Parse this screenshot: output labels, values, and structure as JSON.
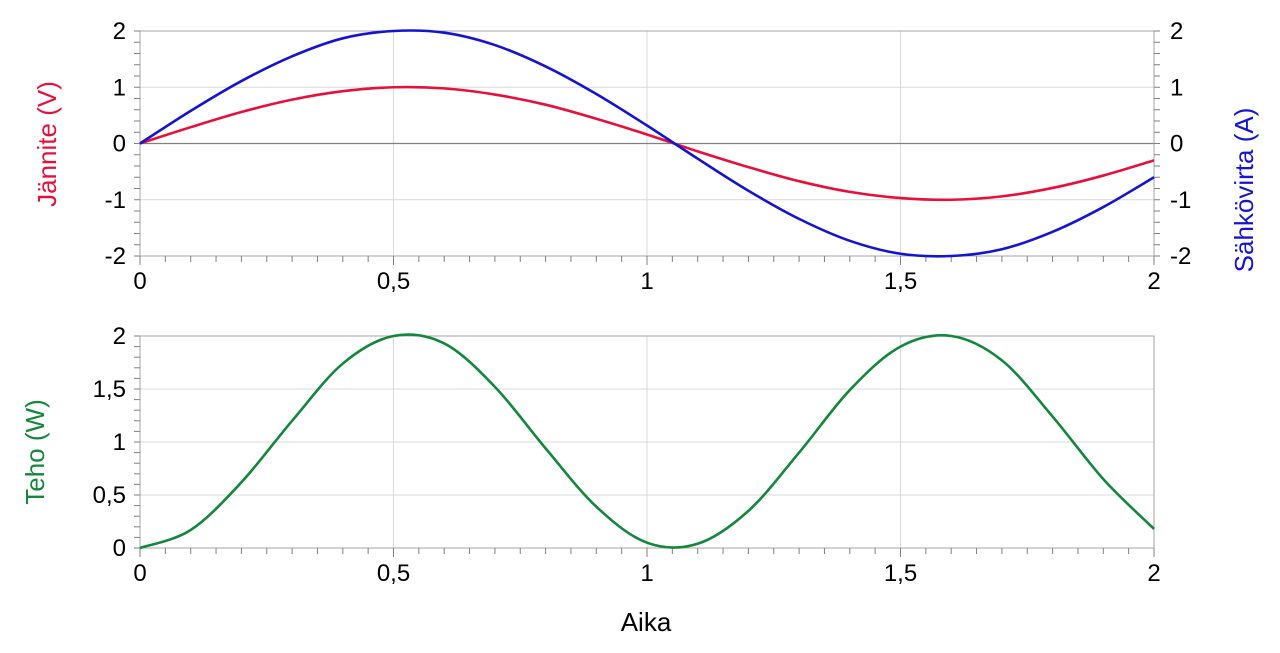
{
  "chart_data": [
    {
      "type": "line",
      "xlabel": "",
      "ylabel_left": "Jännite (V)",
      "ylabel_right": "Sähkövirta (A)",
      "xlim": [
        0,
        2
      ],
      "ylim_left": [
        -2,
        2
      ],
      "ylim_right": [
        -2,
        2
      ],
      "x_ticks": [
        "0",
        "0,5",
        "1",
        "1,5",
        "2"
      ],
      "y_ticks_left": [
        "-2",
        "-1",
        "0",
        "1",
        "2"
      ],
      "y_ticks_right": [
        "-2",
        "-1",
        "0",
        "1",
        "2"
      ],
      "grid": true,
      "series": [
        {
          "axis": "left",
          "color": "#e8103a",
          "x": [
            0,
            0.1,
            0.2,
            0.3,
            0.4,
            0.5,
            0.6,
            0.7,
            0.8,
            0.9,
            1.0,
            1.1,
            1.2,
            1.3,
            1.4,
            1.5,
            1.6,
            1.7,
            1.8,
            1.9,
            2.0
          ],
          "values": [
            0,
            0.29,
            0.56,
            0.78,
            0.93,
            1.0,
            0.98,
            0.87,
            0.69,
            0.44,
            0.16,
            -0.14,
            -0.42,
            -0.67,
            -0.86,
            -0.97,
            -1.0,
            -0.94,
            -0.79,
            -0.57,
            -0.3
          ]
        },
        {
          "axis": "right",
          "color": "#1414d2",
          "x": [
            0,
            0.1,
            0.2,
            0.3,
            0.4,
            0.5,
            0.6,
            0.7,
            0.8,
            0.9,
            1.0,
            1.1,
            1.2,
            1.3,
            1.4,
            1.5,
            1.6,
            1.7,
            1.8,
            1.9,
            2.0
          ],
          "values": [
            0,
            0.58,
            1.11,
            1.55,
            1.87,
            2.0,
            1.97,
            1.75,
            1.37,
            0.88,
            0.32,
            -0.27,
            -0.84,
            -1.34,
            -1.73,
            -1.96,
            -2.0,
            -1.88,
            -1.57,
            -1.13,
            -0.6
          ]
        }
      ]
    },
    {
      "type": "line",
      "xlabel": "Aika",
      "ylabel": "Teho (W)",
      "xlim": [
        0,
        2
      ],
      "ylim": [
        0,
        2
      ],
      "x_ticks": [
        "0",
        "0,5",
        "1",
        "1,5",
        "2"
      ],
      "y_ticks": [
        "0",
        "0,5",
        "1",
        "1,5",
        "2"
      ],
      "grid": true,
      "series": [
        {
          "color": "#13873c",
          "x": [
            0,
            0.1,
            0.2,
            0.3,
            0.4,
            0.5,
            0.6,
            0.7,
            0.8,
            0.9,
            1.0,
            1.1,
            1.2,
            1.3,
            1.4,
            1.5,
            1.6,
            1.7,
            1.8,
            1.9,
            2.0
          ],
          "values": [
            0,
            0.17,
            0.62,
            1.2,
            1.74,
            2.0,
            1.93,
            1.52,
            0.94,
            0.39,
            0.05,
            0.04,
            0.35,
            0.9,
            1.49,
            1.9,
            2.0,
            1.77,
            1.24,
            0.65,
            0.18
          ]
        }
      ]
    }
  ]
}
